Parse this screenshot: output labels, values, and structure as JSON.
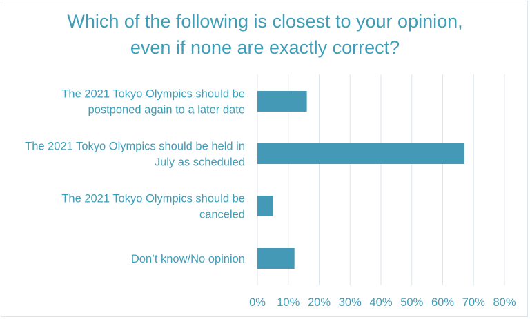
{
  "chart_data": {
    "type": "bar",
    "orientation": "horizontal",
    "title_lines": [
      "Which of the following is closest to your opinion,",
      "even if none are exactly correct?"
    ],
    "categories": [
      [
        "The 2021 Tokyo Olympics should be",
        "postponed again to a later date"
      ],
      [
        "The 2021 Tokyo Olympics should be held in",
        "July as scheduled"
      ],
      [
        "The 2021 Tokyo Olympics should be",
        "canceled"
      ],
      [
        "Don’t know/No opinion"
      ]
    ],
    "values": [
      16,
      67,
      5,
      12
    ],
    "xlim": [
      0,
      80
    ],
    "xticks": [
      "0%",
      "10%",
      "20%",
      "30%",
      "40%",
      "50%",
      "60%",
      "70%",
      "80%"
    ],
    "grid": true,
    "legend": "none",
    "colors": {
      "bar": "#4499b6",
      "text": "#3f9db8",
      "grid": "#dce6ec",
      "border": "#d9e6ee"
    }
  }
}
